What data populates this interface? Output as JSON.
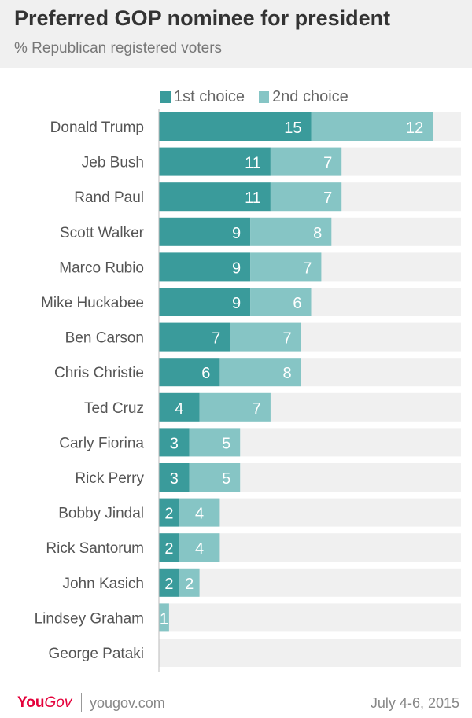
{
  "chart_data": {
    "type": "bar",
    "stacked": true,
    "orientation": "horizontal",
    "title": "Preferred GOP nominee for president",
    "subtitle": "% Republican registered voters",
    "categories": [
      "Donald Trump",
      "Jeb Bush",
      "Rand Paul",
      "Scott Walker",
      "Marco Rubio",
      "Mike Huckabee",
      "Ben Carson",
      "Chris Christie",
      "Ted Cruz",
      "Carly Fiorina",
      "Rick Perry",
      "Bobby Jindal",
      "Rick Santorum",
      "John Kasich",
      "Lindsey Graham",
      "George Pataki"
    ],
    "series": [
      {
        "name": "1st choice",
        "color": "#3a9b9b",
        "values": [
          15,
          11,
          11,
          9,
          9,
          9,
          7,
          6,
          4,
          3,
          3,
          2,
          2,
          2,
          0,
          0
        ]
      },
      {
        "name": "2nd choice",
        "color": "#86c5c5",
        "values": [
          12,
          7,
          7,
          8,
          7,
          6,
          7,
          8,
          7,
          5,
          5,
          4,
          4,
          2,
          1,
          0
        ]
      }
    ],
    "data_labels": [
      [
        "15",
        "12"
      ],
      [
        "11",
        "7"
      ],
      [
        "11",
        "7"
      ],
      [
        "9",
        "8"
      ],
      [
        "9",
        "7"
      ],
      [
        "9",
        "6"
      ],
      [
        "7",
        "7"
      ],
      [
        "6",
        "8"
      ],
      [
        "4",
        "7"
      ],
      [
        "3",
        "5"
      ],
      [
        "3",
        "5"
      ],
      [
        "2",
        "4"
      ],
      [
        "2",
        "4"
      ],
      [
        "2",
        "2"
      ],
      [
        "",
        "1"
      ],
      [
        "",
        ""
      ]
    ],
    "xlim": [
      0,
      30
    ],
    "legend": "top",
    "track_color": "#f0f0f0"
  },
  "footer": {
    "brand_you": "You",
    "brand_gov": "Gov",
    "site": "yougov.com",
    "date": "July 4-6, 2015"
  }
}
